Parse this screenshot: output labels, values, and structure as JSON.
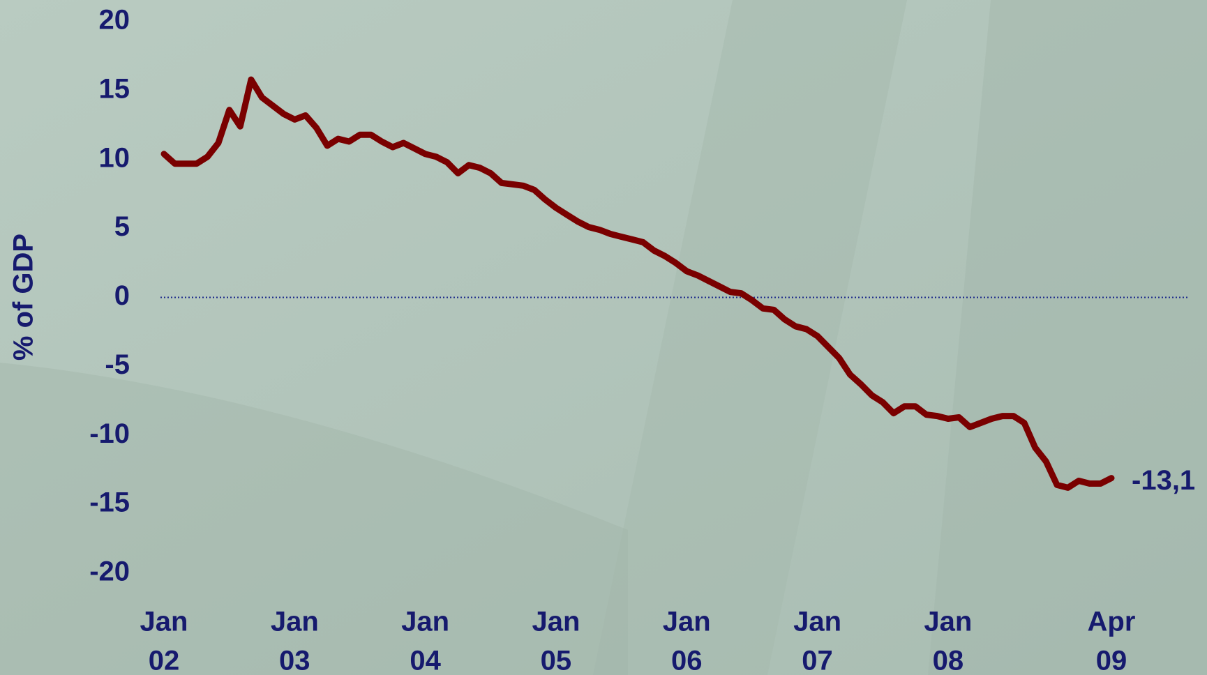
{
  "chart_data": {
    "type": "line",
    "ylabel": "% of GDP",
    "categories": [
      [
        "Jan",
        "02"
      ],
      null,
      null,
      null,
      null,
      null,
      null,
      null,
      null,
      null,
      null,
      null,
      [
        "Jan",
        "03"
      ],
      null,
      null,
      null,
      null,
      null,
      null,
      null,
      null,
      null,
      null,
      null,
      [
        "Jan",
        "04"
      ],
      null,
      null,
      null,
      null,
      null,
      null,
      null,
      null,
      null,
      null,
      null,
      [
        "Jan",
        "05"
      ],
      null,
      null,
      null,
      null,
      null,
      null,
      null,
      null,
      null,
      null,
      null,
      [
        "Jan",
        "06"
      ],
      null,
      null,
      null,
      null,
      null,
      null,
      null,
      null,
      null,
      null,
      null,
      [
        "Jan",
        "07"
      ],
      null,
      null,
      null,
      null,
      null,
      null,
      null,
      null,
      null,
      null,
      null,
      [
        "Jan",
        "08"
      ],
      null,
      null,
      null,
      null,
      null,
      null,
      null,
      null,
      null,
      null,
      null,
      null,
      null,
      null,
      [
        "Apr",
        "09"
      ]
    ],
    "series": [
      {
        "color": "#7a0000",
        "values": [
          10.4,
          9.7,
          9.7,
          9.7,
          10.2,
          11.2,
          13.6,
          12.4,
          15.8,
          14.5,
          13.9,
          13.3,
          12.9,
          13.2,
          12.3,
          11.0,
          11.5,
          11.3,
          11.8,
          11.8,
          11.3,
          10.9,
          11.2,
          10.8,
          10.4,
          10.2,
          9.8,
          9.0,
          9.6,
          9.4,
          9.0,
          8.3,
          8.2,
          8.1,
          7.8,
          7.1,
          6.5,
          6.0,
          5.5,
          5.1,
          4.9,
          4.6,
          4.4,
          4.2,
          4.0,
          3.4,
          3.0,
          2.5,
          1.9,
          1.6,
          1.2,
          0.8,
          0.4,
          0.3,
          -0.2,
          -0.8,
          -0.9,
          -1.6,
          -2.1,
          -2.3,
          -2.8,
          -3.6,
          -4.4,
          -5.6,
          -6.3,
          -7.1,
          -7.6,
          -8.4,
          -7.9,
          -7.9,
          -8.5,
          -8.6,
          -8.8,
          -8.7,
          -9.4,
          -9.1,
          -8.8,
          -8.6,
          -8.6,
          -9.1,
          -10.9,
          -11.9,
          -13.6,
          -13.8,
          -13.3,
          -13.5,
          -13.5,
          -13.1
        ],
        "value_labels": [
          null,
          null,
          null,
          null,
          null,
          null,
          null,
          null,
          null,
          null,
          null,
          null,
          null,
          null,
          null,
          null,
          null,
          null,
          null,
          null,
          null,
          null,
          null,
          null,
          null,
          null,
          null,
          null,
          null,
          null,
          null,
          null,
          null,
          null,
          null,
          null,
          null,
          null,
          null,
          null,
          null,
          null,
          null,
          null,
          null,
          null,
          null,
          null,
          null,
          null,
          null,
          null,
          null,
          null,
          null,
          null,
          null,
          null,
          null,
          null,
          null,
          null,
          null,
          null,
          null,
          null,
          null,
          null,
          null,
          null,
          null,
          null,
          null,
          null,
          null,
          null,
          null,
          null,
          null,
          null,
          null,
          null,
          null,
          null,
          null,
          null,
          null,
          "-13,1"
        ]
      }
    ],
    "ylim": [
      -20,
      20
    ],
    "yticks": [
      -20,
      -15,
      -10,
      -5,
      0,
      5,
      10,
      15,
      20
    ],
    "hline": 0,
    "grid": false
  }
}
